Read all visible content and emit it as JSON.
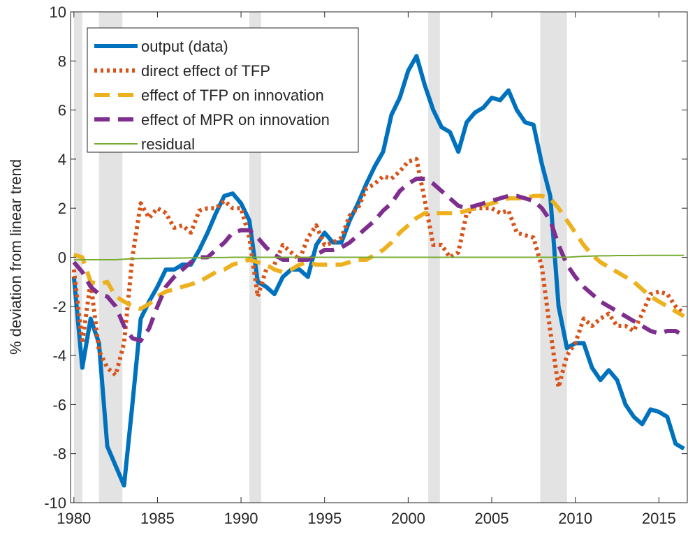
{
  "chart_data": {
    "type": "line",
    "ylabel": "% deviation from linear trend",
    "xlim": [
      1979.8,
      2016.7
    ],
    "ylim": [
      -10,
      10
    ],
    "xticks": [
      1980,
      1985,
      1990,
      1995,
      2000,
      2005,
      2010,
      2015
    ],
    "yticks": [
      -10,
      -8,
      -6,
      -4,
      -2,
      0,
      2,
      4,
      6,
      8,
      10
    ],
    "recessions": [
      [
        1980.0,
        1980.5
      ],
      [
        1981.5,
        1982.9
      ],
      [
        1990.5,
        1991.2
      ],
      [
        2001.2,
        2001.9
      ],
      [
        2007.9,
        2009.5
      ]
    ],
    "recession_color": "#e3e3e3",
    "legend": "upper left",
    "x": [
      1980,
      1980.5,
      1981,
      1981.5,
      1982,
      1982.5,
      1983,
      1983.5,
      1984,
      1984.5,
      1985,
      1985.5,
      1986,
      1986.5,
      1987,
      1987.5,
      1988,
      1988.5,
      1989,
      1989.5,
      1990,
      1990.5,
      1991,
      1991.5,
      1992,
      1992.5,
      1993,
      1993.5,
      1994,
      1994.5,
      1995,
      1995.5,
      1996,
      1996.5,
      1997,
      1997.5,
      1998,
      1998.5,
      1999,
      1999.5,
      2000,
      2000.5,
      2001,
      2001.5,
      2002,
      2002.5,
      2003,
      2003.5,
      2004,
      2004.5,
      2005,
      2005.5,
      2006,
      2006.5,
      2007,
      2007.5,
      2008,
      2008.5,
      2009,
      2009.5,
      2010,
      2010.5,
      2011,
      2011.5,
      2012,
      2012.5,
      2013,
      2013.5,
      2014,
      2014.5,
      2015,
      2015.5,
      2016,
      2016.5
    ],
    "series": [
      {
        "name": "output (data)",
        "color": "#0072bd",
        "style": "solid",
        "linewidth": 6,
        "values": [
          -0.8,
          -4.5,
          -2.5,
          -3.5,
          -7.7,
          -8.5,
          -9.3,
          -6,
          -2.5,
          -1.8,
          -1.2,
          -0.5,
          -0.5,
          -0.3,
          -0.3,
          0.3,
          1.0,
          1.8,
          2.5,
          2.6,
          2.2,
          1.5,
          -1.0,
          -1.2,
          -1.5,
          -0.8,
          -0.5,
          -0.5,
          -0.8,
          0.5,
          1.0,
          0.6,
          0.6,
          1.5,
          2.2,
          3.0,
          3.7,
          4.3,
          5.8,
          6.5,
          7.6,
          8.2,
          7.0,
          6.0,
          5.3,
          5.1,
          4.3,
          5.5,
          5.9,
          6.1,
          6.5,
          6.4,
          6.8,
          6.0,
          5.5,
          5.4,
          3.8,
          2.5,
          -2.0,
          -3.7,
          -3.5,
          -3.5,
          -4.5,
          -5.0,
          -4.6,
          -5.0,
          -6.0,
          -6.5,
          -6.8,
          -6.2,
          -6.3,
          -6.5,
          -7.6,
          -7.8
        ]
      },
      {
        "name": "direct effect of TFP",
        "color": "#d95319",
        "style": "dotted",
        "linewidth": 6,
        "values": [
          -0.5,
          -3.5,
          -1.0,
          -3.8,
          -4.5,
          -4.8,
          -3.5,
          0,
          2.2,
          1.6,
          2.0,
          1.8,
          1.2,
          1.3,
          1.0,
          1.9,
          2.0,
          2.0,
          2.3,
          2.0,
          2.0,
          0.8,
          -1.6,
          -0.5,
          -0.3,
          0.5,
          0.2,
          -0.1,
          0.8,
          1.3,
          0.5,
          0.6,
          0.8,
          1.7,
          2.0,
          2.8,
          3.0,
          3.3,
          3.2,
          3.5,
          3.9,
          4.0,
          2.3,
          0.5,
          0.5,
          0.0,
          0.2,
          1.8,
          2.0,
          2.0,
          2.0,
          1.8,
          1.9,
          1.0,
          0.9,
          0.8,
          -0.4,
          -3.0,
          -5.3,
          -4.0,
          -3.5,
          -2.5,
          -2.8,
          -2.5,
          -2.3,
          -2.8,
          -2.8,
          -3.0,
          -2.3,
          -1.5,
          -1.4,
          -1.5,
          -2.0,
          -2.3
        ]
      },
      {
        "name": "effect of TFP on innovation",
        "color": "#edb120",
        "style": "dashed",
        "linewidth": 6,
        "values": [
          0.1,
          0,
          -1.0,
          -1.1,
          -1.0,
          -1.6,
          -1.8,
          -2.0,
          -2.1,
          -1.9,
          -1.6,
          -1.4,
          -1.3,
          -1.2,
          -1.1,
          -1.0,
          -0.8,
          -0.6,
          -0.5,
          -0.3,
          -0.2,
          -0.1,
          -0.2,
          -0.3,
          -0.5,
          -0.6,
          -0.5,
          -0.3,
          -0.2,
          -0.3,
          -0.3,
          -0.3,
          -0.3,
          -0.2,
          -0.1,
          -0.1,
          0.1,
          0.3,
          0.6,
          1.0,
          1.3,
          1.6,
          1.8,
          1.8,
          1.8,
          1.8,
          1.8,
          1.9,
          2.0,
          2.1,
          2.2,
          2.3,
          2.4,
          2.4,
          2.4,
          2.5,
          2.5,
          2.4,
          2.0,
          1.5,
          1.0,
          0.5,
          0.1,
          -0.2,
          -0.4,
          -0.6,
          -0.8,
          -1.0,
          -1.3,
          -1.6,
          -1.8,
          -2.0,
          -2.2,
          -2.4
        ]
      },
      {
        "name": "effect of MPR on innovation",
        "color": "#7e2f8e",
        "style": "dashed",
        "linewidth": 6,
        "values": [
          -0.2,
          -0.6,
          -1.2,
          -1.5,
          -1.6,
          -2.0,
          -2.8,
          -3.3,
          -3.4,
          -2.9,
          -2.0,
          -1.2,
          -0.8,
          -0.5,
          -0.2,
          0,
          0,
          0.3,
          0.6,
          1.0,
          1.1,
          1.1,
          0.8,
          0.4,
          0.1,
          -0.1,
          -0.1,
          -0.1,
          -0.1,
          0.1,
          0.3,
          0.3,
          0.4,
          0.6,
          0.9,
          1.2,
          1.5,
          1.9,
          2.2,
          2.7,
          3.0,
          3.2,
          3.2,
          3.0,
          2.7,
          2.4,
          2.1,
          2.0,
          2.1,
          2.2,
          2.3,
          2.4,
          2.5,
          2.5,
          2.4,
          2.3,
          2.0,
          1.5,
          0.5,
          -0.3,
          -0.8,
          -1.2,
          -1.5,
          -1.8,
          -2.0,
          -2.2,
          -2.4,
          -2.6,
          -2.8,
          -3.0,
          -3.1,
          -3.0,
          -3.0,
          -3.2
        ]
      },
      {
        "name": "residual",
        "color": "#77ac30",
        "style": "solid",
        "linewidth": 2,
        "values": [
          -0.1,
          -0.1,
          -0.1,
          -0.1,
          -0.1,
          -0.1,
          -0.08,
          -0.06,
          -0.05,
          -0.05,
          -0.04,
          -0.04,
          -0.03,
          -0.03,
          -0.02,
          -0.02,
          -0.02,
          -0.01,
          -0.01,
          0,
          0,
          0,
          0,
          0,
          0,
          0,
          0,
          0,
          0,
          0,
          0,
          0,
          0,
          0,
          0,
          0,
          0,
          0,
          0,
          0,
          0,
          0,
          0,
          0,
          0,
          0,
          0,
          0,
          0,
          0,
          0,
          0,
          0,
          0,
          0,
          0,
          0,
          0,
          0,
          0,
          0.02,
          0.04,
          0.05,
          0.06,
          0.06,
          0.07,
          0.07,
          0.07,
          0.08,
          0.08,
          0.08,
          0.08,
          0.08,
          0.08
        ]
      }
    ]
  }
}
